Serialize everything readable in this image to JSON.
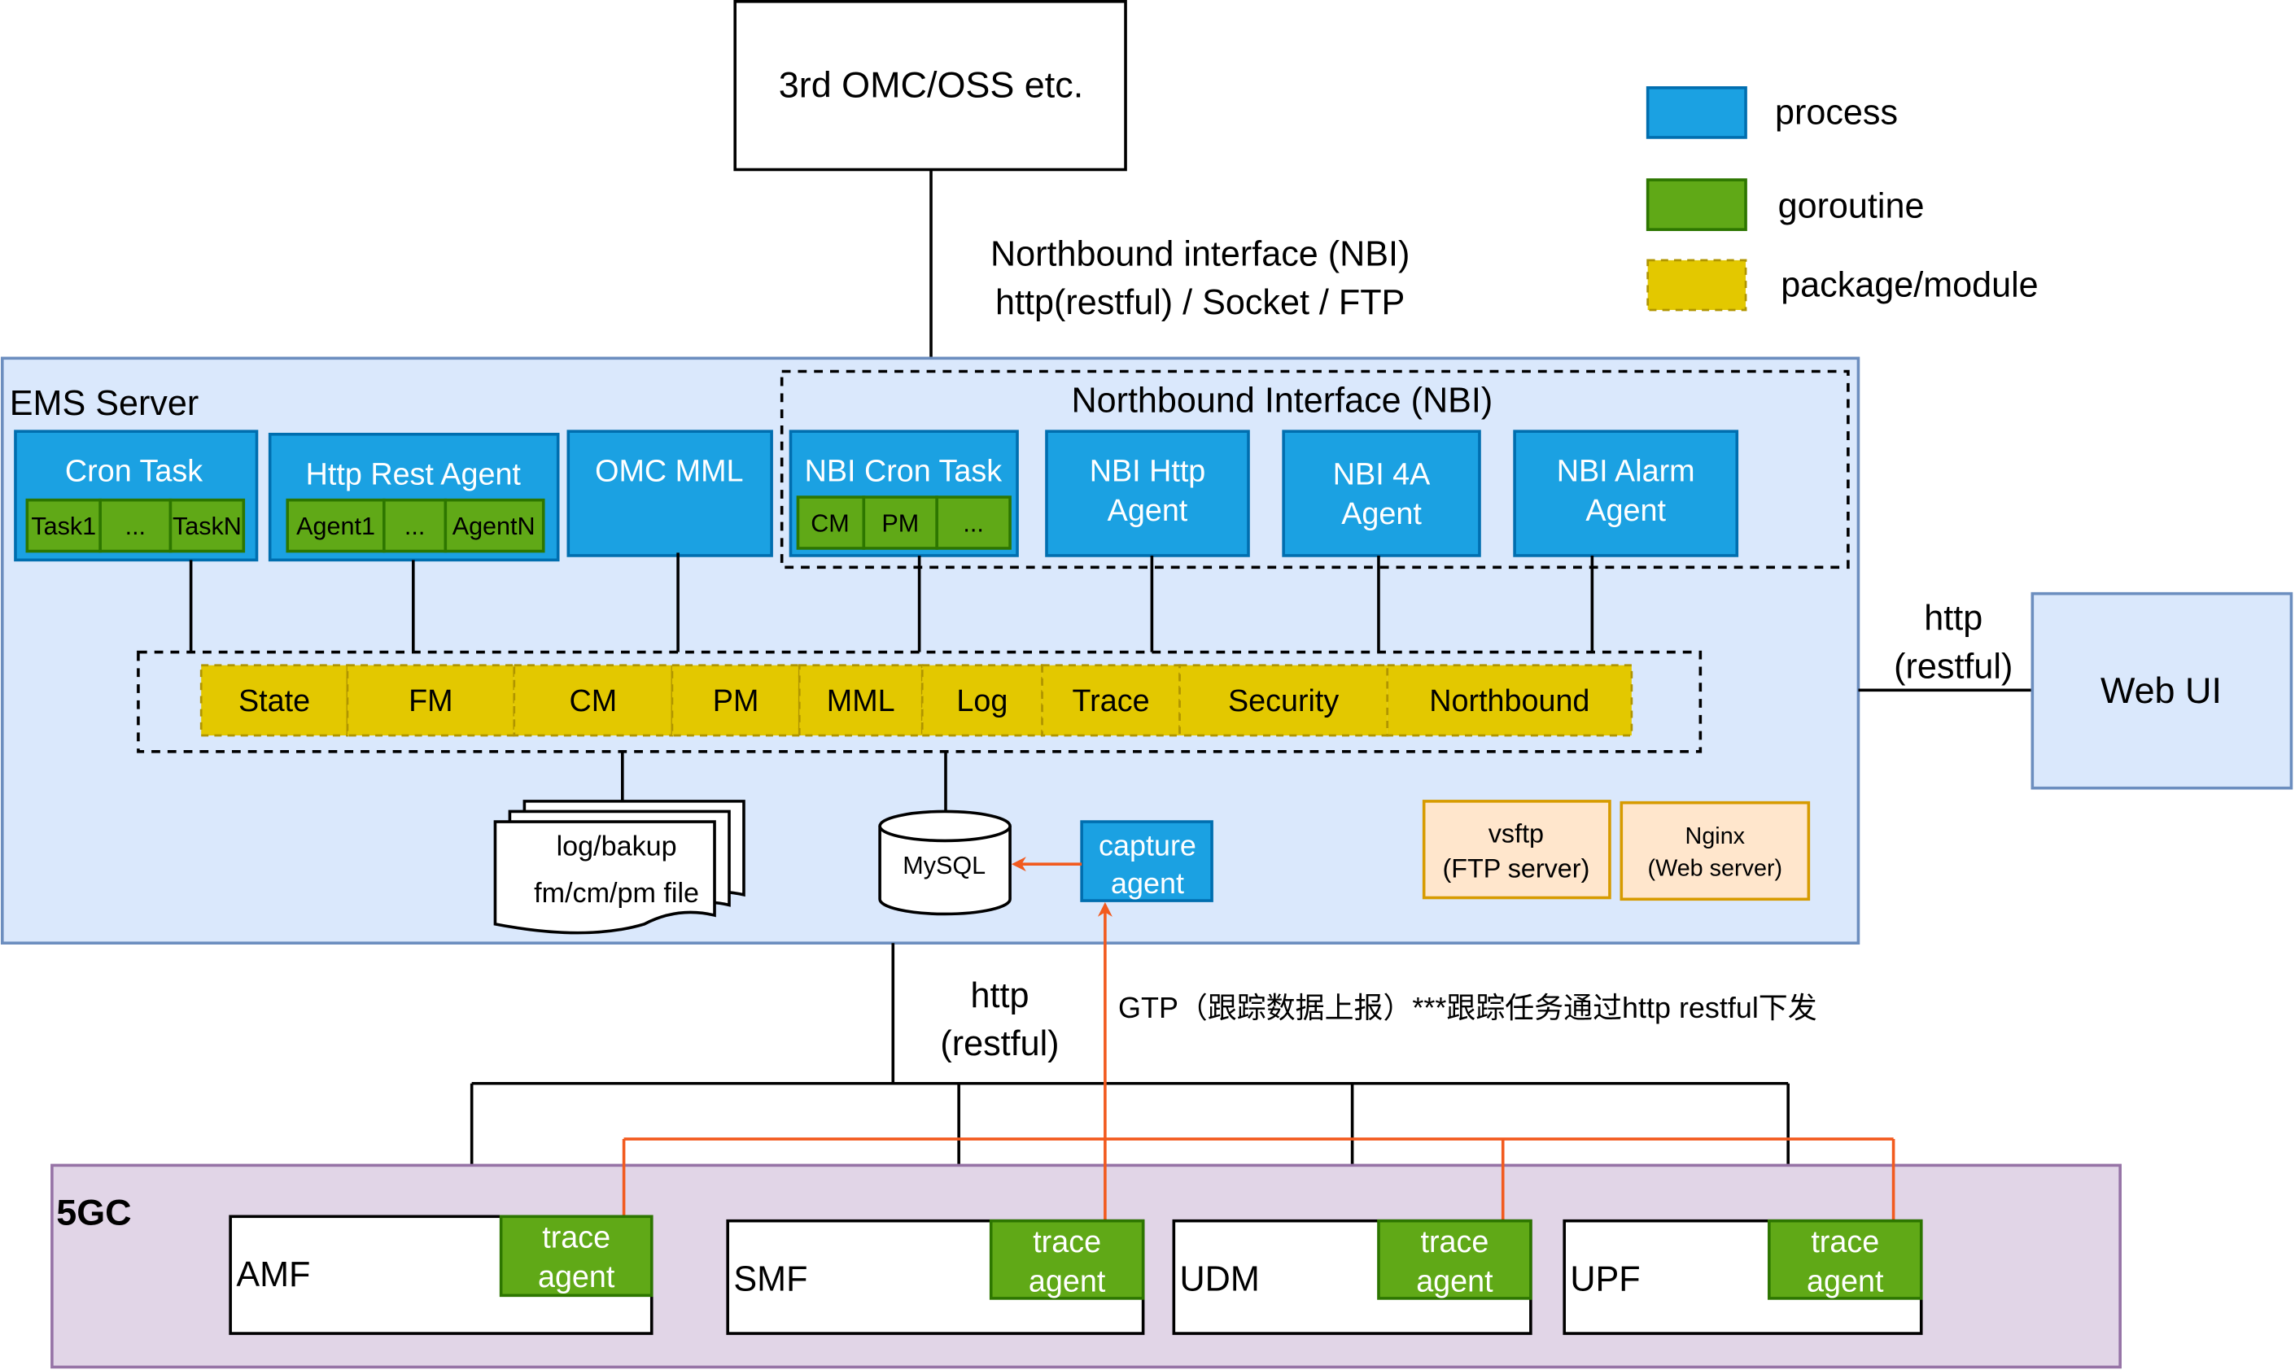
{
  "colors": {
    "process": "#1ba1e2",
    "goroutine": "#60a917",
    "package": "#e3c800",
    "ems_bg": "#dae8fc",
    "fivegc_bg": "#e1d5e7",
    "server_bg": "#ffe6cc",
    "arrow": "#f25a1e"
  },
  "oss": {
    "label": "3rd OMC/OSS etc."
  },
  "nbi_link": {
    "line1": "Northbound interface (NBI)",
    "line2": "http(restful) / Socket / FTP"
  },
  "legend": [
    {
      "label": "process",
      "color": "#1ba1e2"
    },
    {
      "label": "goroutine",
      "color": "#60a917"
    },
    {
      "label": "package/module",
      "color": "#e3c800"
    }
  ],
  "ems": {
    "title": "EMS Server",
    "cron_task": {
      "title": "Cron Task",
      "items": [
        "Task1",
        "...",
        "TaskN"
      ]
    },
    "http_rest_agent": {
      "title": "Http Rest Agent",
      "items": [
        "Agent1",
        "...",
        "AgentN"
      ]
    },
    "omc_mml": {
      "title": "OMC MML"
    },
    "nbi_group": {
      "title": "Northbound Interface (NBI)"
    },
    "nbi_cron_task": {
      "title": "NBI Cron Task",
      "items": [
        "CM",
        "PM",
        "..."
      ]
    },
    "nbi_http_agent": {
      "line1": "NBI Http",
      "line2": "Agent"
    },
    "nbi_4a_agent": {
      "line1": "NBI 4A",
      "line2": "Agent"
    },
    "nbi_alarm_agent": {
      "line1": "NBI Alarm",
      "line2": "Agent"
    },
    "modules": [
      "State",
      "FM",
      "CM",
      "PM",
      "MML",
      "Log",
      "Trace",
      "Security",
      "Northbound"
    ],
    "files": {
      "line1": "log/bakup",
      "line2": "fm/cm/pm file"
    },
    "mysql": "MySQL",
    "capture_agent": {
      "line1": "capture",
      "line2": "agent"
    },
    "vsftp": {
      "line1": "vsftp",
      "line2": "(FTP server)"
    },
    "nginx": {
      "line1": "Nginx",
      "line2": "(Web server)"
    }
  },
  "webui_link": {
    "line1": "http",
    "line2": "(restful)"
  },
  "webui": {
    "label": "Web UI"
  },
  "south_link": {
    "line1": "http",
    "line2": "(restful)"
  },
  "gtp_note": "GTP（跟踪数据上报）***跟踪任务通过http restful下发",
  "fivegc": {
    "title": "5GC",
    "nfs": [
      {
        "name": "AMF",
        "agent1": "trace",
        "agent2": "agent"
      },
      {
        "name": "SMF",
        "agent1": "trace",
        "agent2": "agent"
      },
      {
        "name": "UDM",
        "agent1": "trace",
        "agent2": "agent"
      },
      {
        "name": "UPF",
        "agent1": "trace",
        "agent2": "agent"
      }
    ]
  }
}
